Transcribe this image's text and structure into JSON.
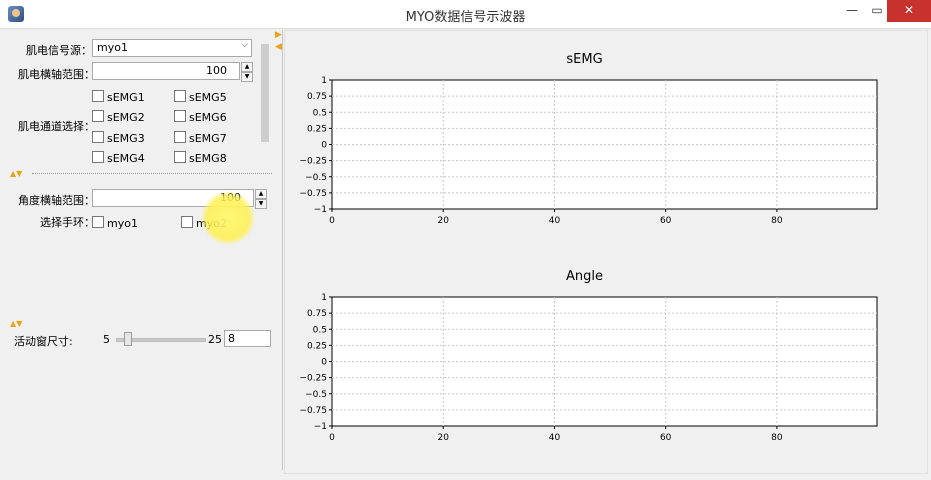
{
  "window": {
    "title": "MYO数据信号示波器",
    "minimize": "—",
    "maximize": "▭",
    "close": "✕"
  },
  "emg_section": {
    "source_label": "肌电信号源：",
    "source_value": "myo1",
    "range_label": "肌电横轴范围：",
    "range_value": "100",
    "channels_label": "肌电通道选择：",
    "channels": [
      "sEMG1",
      "sEMG2",
      "sEMG3",
      "sEMG4",
      "sEMG5",
      "sEMG6",
      "sEMG7",
      "sEMG8"
    ]
  },
  "angle_section": {
    "range_label": "角度横轴范围：",
    "range_value": "100",
    "band_label": "选择手环：",
    "bands": [
      "myo1",
      "myo2"
    ]
  },
  "window_size": {
    "label": "活动窗尺寸:",
    "min": "5",
    "max": "25",
    "value": "8"
  },
  "charts": {
    "emg_title": "sEMG",
    "angle_title": "Angle"
  },
  "chart_data": [
    {
      "type": "line",
      "title": "sEMG",
      "xlabel": "",
      "ylabel": "",
      "xlim": [
        0,
        98
      ],
      "ylim": [
        -1,
        1
      ],
      "x_ticks": [
        "0",
        "20",
        "40",
        "60",
        "80"
      ],
      "y_ticks": [
        "1",
        "0.75",
        "0.5",
        "0.25",
        "0",
        "−0.25",
        "−0.5",
        "−0.75",
        "−1"
      ],
      "grid": true,
      "series": []
    },
    {
      "type": "line",
      "title": "Angle",
      "xlabel": "",
      "ylabel": "",
      "xlim": [
        0,
        98
      ],
      "ylim": [
        -1,
        1
      ],
      "x_ticks": [
        "0",
        "20",
        "40",
        "60",
        "80"
      ],
      "y_ticks": [
        "1",
        "0.75",
        "0.5",
        "0.25",
        "0",
        "−0.25",
        "−0.5",
        "−0.75",
        "−1"
      ],
      "grid": true,
      "series": []
    }
  ]
}
